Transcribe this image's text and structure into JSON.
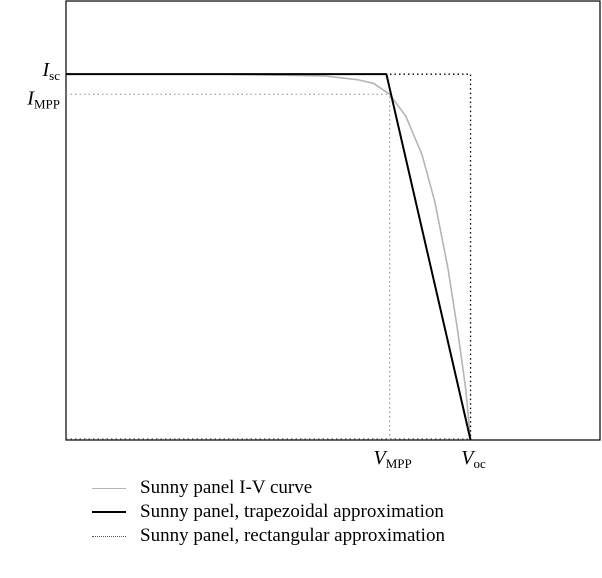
{
  "chart_data": {
    "type": "line",
    "title": "",
    "xlabel": "",
    "ylabel": "",
    "xlim": [
      0,
      1.65
    ],
    "ylim": [
      0,
      1.2
    ],
    "x_ticks": [
      {
        "value": 1.0,
        "label": "V",
        "sub": "MPP"
      },
      {
        "value": 1.25,
        "label": "V",
        "sub": "oc"
      }
    ],
    "y_ticks": [
      {
        "value": 1.0,
        "label": "I",
        "sub": "sc"
      },
      {
        "value": 0.945,
        "label": "I",
        "sub": "MPP"
      }
    ],
    "reference_lines": [
      {
        "orientation": "horizontal",
        "value": 0.945,
        "from": 0,
        "to": 1.0
      },
      {
        "orientation": "vertical",
        "value": 1.0,
        "from": 0,
        "to": 0.945
      }
    ],
    "series": [
      {
        "name": "Sunny panel I-V curve",
        "style": "solid",
        "color": "#b5b5b5",
        "points": [
          [
            0,
            1.0
          ],
          [
            0.5,
            1.0
          ],
          [
            0.8,
            0.995
          ],
          [
            0.9,
            0.985
          ],
          [
            0.95,
            0.975
          ],
          [
            1.0,
            0.945
          ],
          [
            1.05,
            0.885
          ],
          [
            1.1,
            0.78
          ],
          [
            1.14,
            0.65
          ],
          [
            1.18,
            0.47
          ],
          [
            1.21,
            0.3
          ],
          [
            1.235,
            0.14
          ],
          [
            1.25,
            0.0
          ]
        ]
      },
      {
        "name": "Sunny panel, trapezoidal approximation",
        "style": "solid",
        "color": "#000000",
        "points": [
          [
            0,
            1.0
          ],
          [
            0.99,
            1.0
          ],
          [
            1.25,
            0.0
          ]
        ]
      },
      {
        "name": "Sunny panel, rectangular approximation",
        "style": "dotted",
        "color": "#000000",
        "points": [
          [
            0,
            1.0
          ],
          [
            1.25,
            1.0
          ],
          [
            1.25,
            0.0
          ]
        ]
      }
    ],
    "legend_position": "bottom-left"
  }
}
